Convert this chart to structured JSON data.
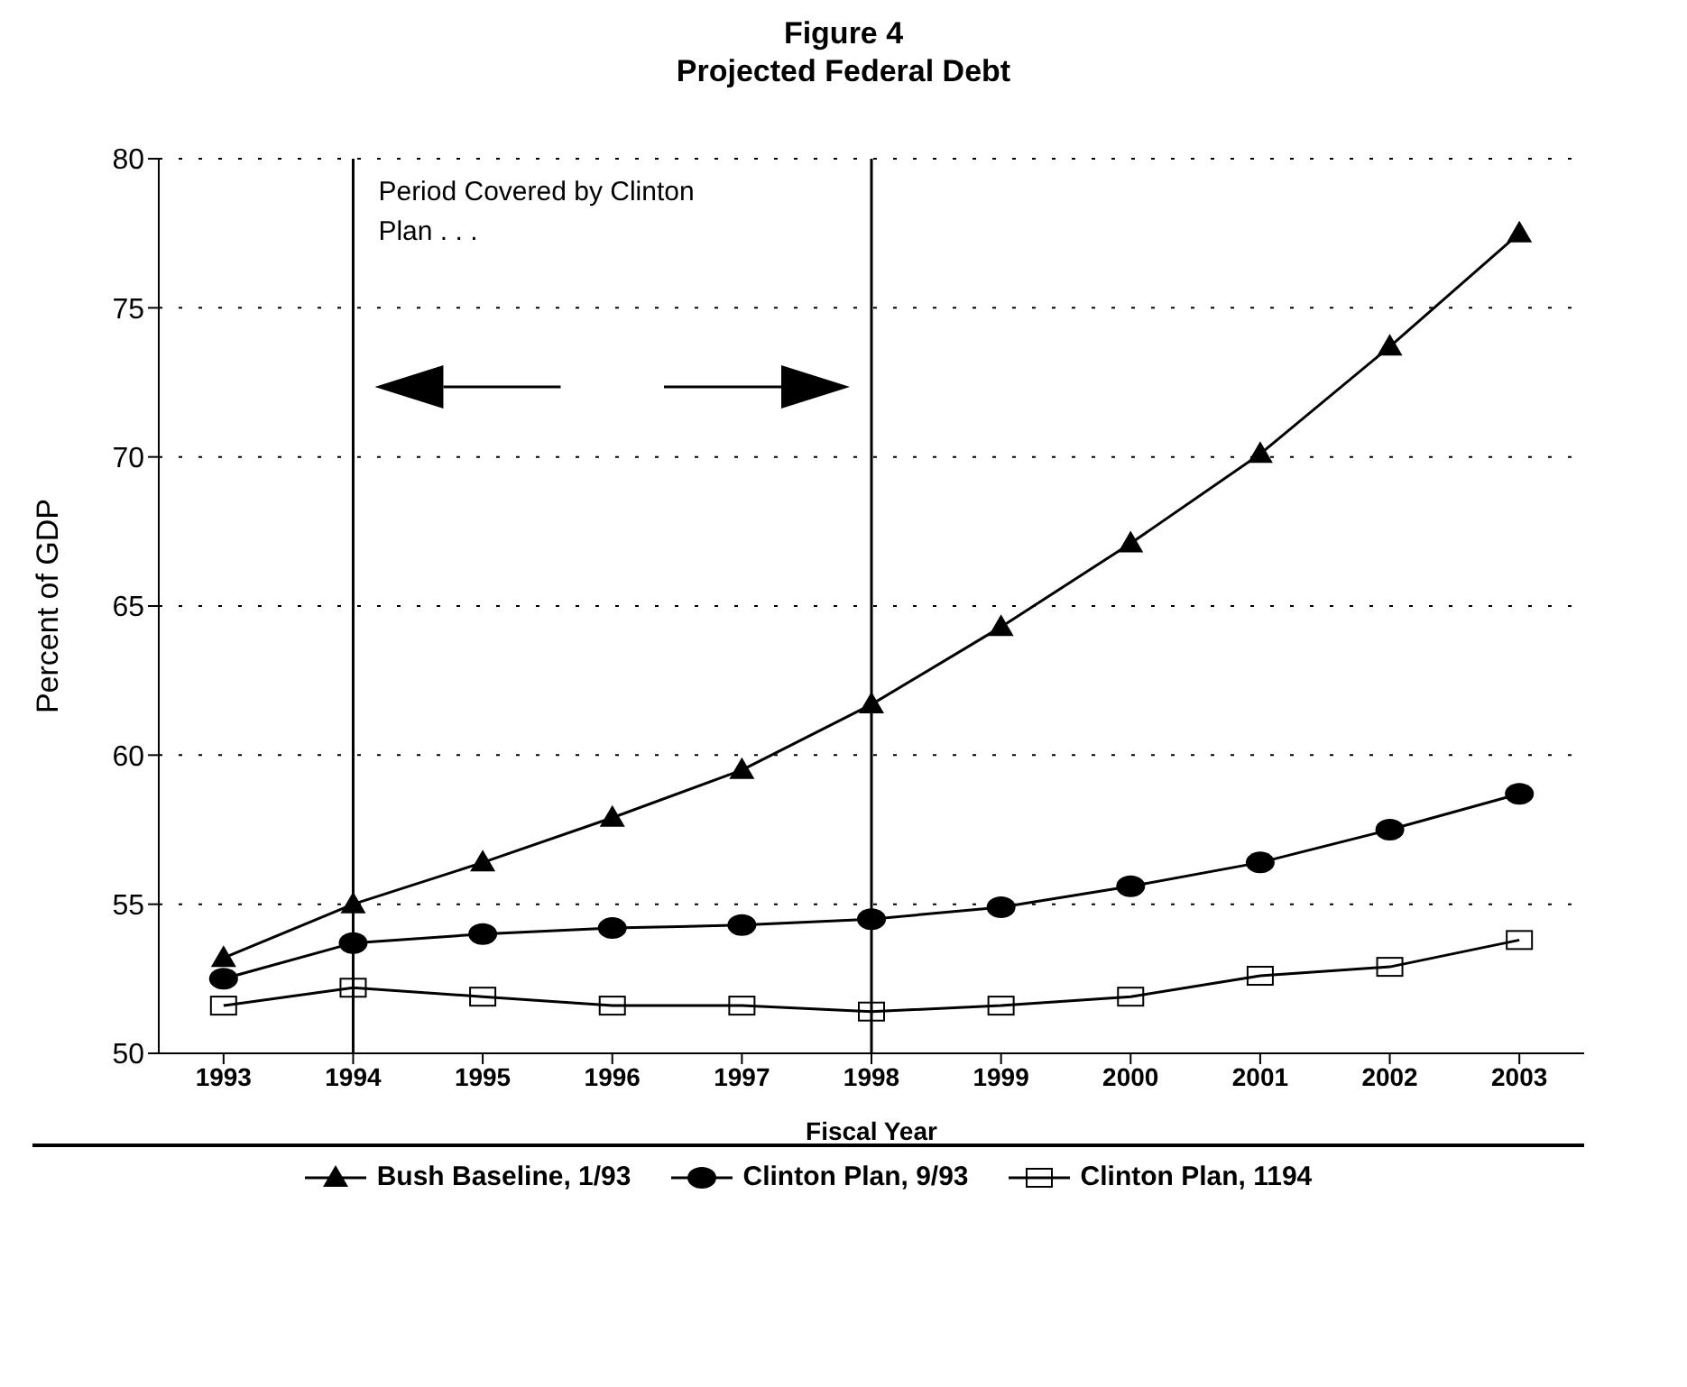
{
  "chart_data": {
    "type": "line",
    "title": "Figure 4",
    "subtitle": "Projected Federal Debt",
    "xlabel": "Fiscal Year",
    "ylabel": "Percent of GDP",
    "categories": [
      "1993",
      "1994",
      "1995",
      "1996",
      "1997",
      "1998",
      "1999",
      "2000",
      "2001",
      "2002",
      "2003"
    ],
    "series": [
      {
        "name": "Bush Baseline, 1/93",
        "color": "#000000",
        "marker": "triangle",
        "values": [
          53.2,
          55.0,
          56.4,
          57.9,
          59.5,
          61.7,
          64.3,
          67.1,
          70.1,
          73.7,
          77.5
        ]
      },
      {
        "name": "Clinton Plan, 9/93",
        "color": "#000000",
        "marker": "circle",
        "values": [
          52.5,
          53.7,
          54.0,
          54.2,
          54.3,
          54.5,
          54.9,
          55.6,
          56.4,
          57.5,
          58.7
        ]
      },
      {
        "name": "Clinton Plan, 1194",
        "color": "#000000",
        "marker": "square",
        "values": [
          51.6,
          52.2,
          51.9,
          51.6,
          51.6,
          51.4,
          51.6,
          51.9,
          52.6,
          52.9,
          53.8
        ]
      }
    ],
    "ylim": [
      50,
      80
    ],
    "yticks": [
      50,
      55,
      60,
      65,
      70,
      75,
      80
    ],
    "grid": "y",
    "legend": "bottom",
    "line_style": "solid",
    "ref_lines": [
      {
        "axis": "x",
        "value": "1994",
        "color": "#000000"
      },
      {
        "axis": "x",
        "value": "1998",
        "color": "#000000"
      }
    ],
    "annotations": [
      "Period Covered by Clinton Plan . . ."
    ]
  }
}
